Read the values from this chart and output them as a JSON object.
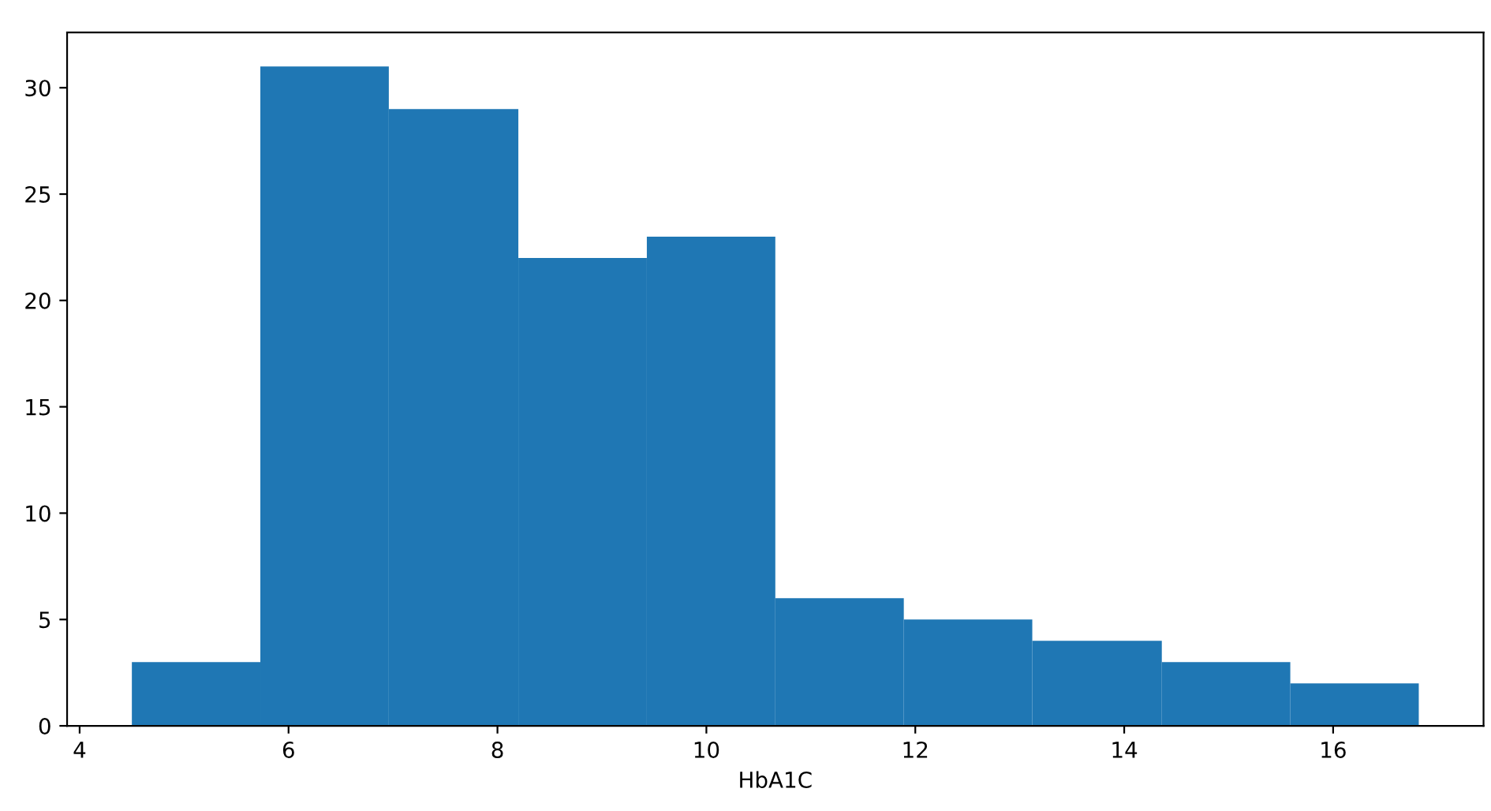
{
  "chart_data": {
    "type": "histogram",
    "xlabel": "HbA1C",
    "bins": [
      4.5,
      5.73,
      6.96,
      8.2,
      9.43,
      10.66,
      11.89,
      13.12,
      14.36,
      15.59,
      16.82
    ],
    "values": [
      3,
      31,
      29,
      22,
      23,
      6,
      5,
      4,
      3,
      2
    ],
    "color": "#1f77b4",
    "xlim": [
      3.88,
      17.44
    ],
    "xticks": [
      4,
      6,
      8,
      10,
      12,
      14,
      16
    ],
    "ylim": [
      0,
      32.6
    ],
    "yticks": [
      0,
      5,
      10,
      15,
      20,
      25,
      30
    ],
    "grid": false
  }
}
